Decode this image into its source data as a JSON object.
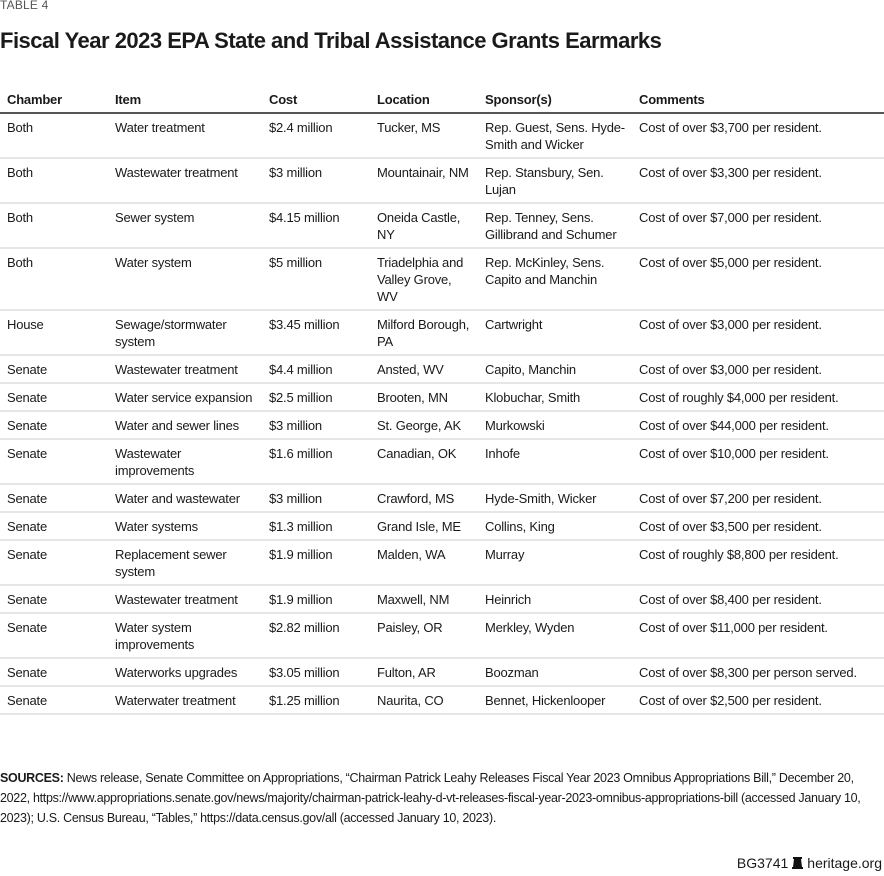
{
  "label": "TABLE 4",
  "title": "Fiscal Year 2023 EPA State and Tribal Assistance Grants Earmarks",
  "columns": [
    "Chamber",
    "Item",
    "Cost",
    "Location",
    "Sponsor(s)",
    "Comments"
  ],
  "rows": [
    [
      "Both",
      "Water treatment",
      "$2.4 million",
      "Tucker, MS",
      "Rep. Guest, Sens. Hyde-Smith and Wicker",
      "Cost of over $3,700 per resident."
    ],
    [
      "Both",
      "Wastewater treatment",
      "$3 million",
      "Mountainair, NM",
      "Rep. Stansbury, Sen. Lujan",
      "Cost of over $3,300 per resident."
    ],
    [
      "Both",
      "Sewer system",
      "$4.15 million",
      "Oneida Castle, NY",
      "Rep. Tenney, Sens. Gillibrand and Schumer",
      "Cost of over $7,000 per resident."
    ],
    [
      "Both",
      "Water system",
      "$5 million",
      "Triadelphia and Valley Grove, WV",
      "Rep. McKinley, Sens. Capito and Manchin",
      "Cost of over $5,000 per resident."
    ],
    [
      "House",
      "Sewage/stormwater system",
      "$3.45 million",
      "Milford Borough, PA",
      "Cartwright",
      "Cost of over $3,000 per resident."
    ],
    [
      "Senate",
      "Wastewater treatment",
      "$4.4 million",
      "Ansted, WV",
      "Capito, Manchin",
      "Cost of over $3,000 per resident."
    ],
    [
      "Senate",
      "Water service expansion",
      "$2.5 million",
      "Brooten, MN",
      "Klobuchar, Smith",
      "Cost of roughly $4,000 per resident."
    ],
    [
      "Senate",
      "Water and sewer lines",
      "$3 million",
      "St. George, AK",
      "Murkowski",
      "Cost of over $44,000 per resident."
    ],
    [
      "Senate",
      "Wastewater improvements",
      "$1.6 million",
      "Canadian, OK",
      "Inhofe",
      "Cost of over $10,000 per resident."
    ],
    [
      "Senate",
      "Water and wastewater",
      "$3 million",
      "Crawford, MS",
      "Hyde-Smith, Wicker",
      "Cost of over $7,200 per resident."
    ],
    [
      "Senate",
      "Water systems",
      "$1.3 million",
      "Grand Isle, ME",
      "Collins, King",
      "Cost of over $3,500 per resident."
    ],
    [
      "Senate",
      "Replacement sewer system",
      "$1.9 million",
      "Malden, WA",
      "Murray",
      "Cost of roughly $8,800 per resident."
    ],
    [
      "Senate",
      "Wastewater treatment",
      "$1.9 million",
      "Maxwell, NM",
      "Heinrich",
      "Cost of over $8,400 per resident."
    ],
    [
      "Senate",
      "Water system improvements",
      "$2.82 million",
      "Paisley, OR",
      "Merkley, Wyden",
      "Cost of over $11,000 per resident."
    ],
    [
      "Senate",
      "Waterworks upgrades",
      "$3.05 million",
      "Fulton, AR",
      "Boozman",
      "Cost of over $8,300 per person served."
    ],
    [
      "Senate",
      "Waterwater treatment",
      "$1.25 million",
      "Naurita, CO",
      "Bennet, Hickenlooper",
      "Cost of over $2,500 per resident."
    ]
  ],
  "sources": {
    "label": "SOURCES:",
    "text": " News release, Senate Committee on Appropriations, “Chairman Patrick Leahy Releases Fiscal Year 2023 Omnibus Appropriations Bill,” December 20, 2022, https://www.appropriations.senate.gov/news/majority/chairman-patrick-leahy-d-vt-releases-fiscal-year-2023-omnibus-appropriations-bill (accessed January 10, 2023); U.S. Census Bureau, “Tables,” https://data.census.gov/all (accessed January 10, 2023)."
  },
  "footer": {
    "code": "BG3741",
    "site": "heritage.org",
    "icon": "liberty-bell-icon"
  }
}
